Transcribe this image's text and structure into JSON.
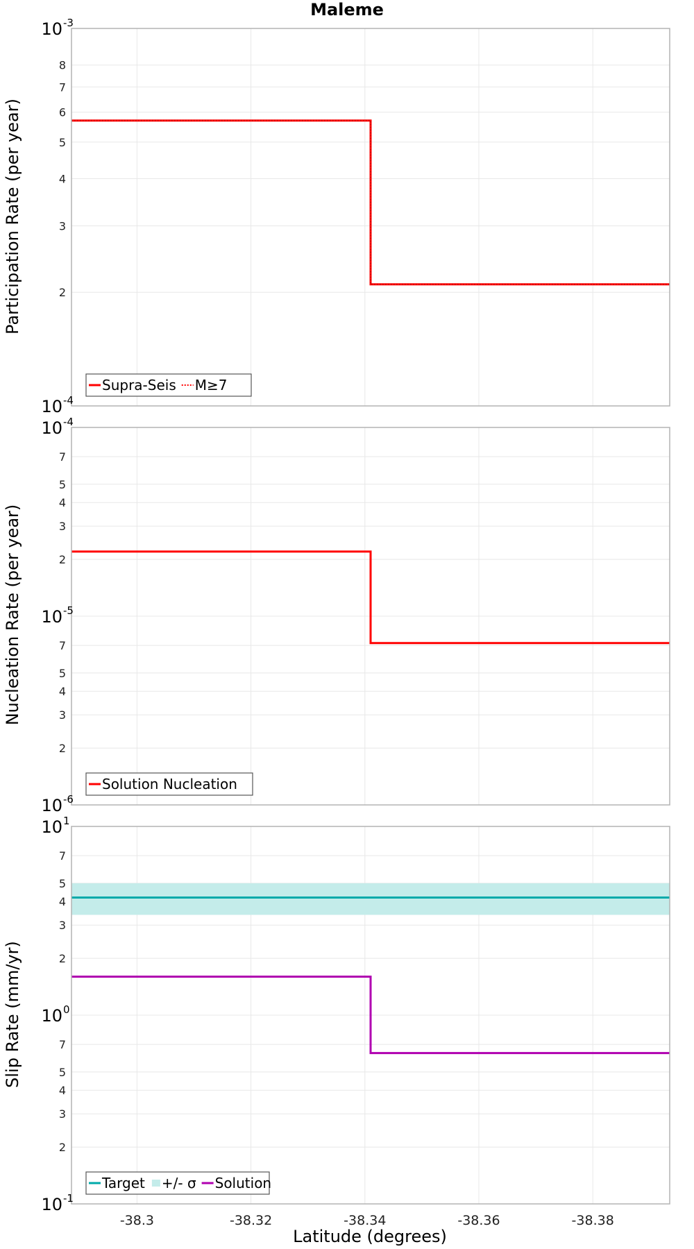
{
  "chart_data": [
    {
      "type": "line",
      "title": "Maleme",
      "xlabel": "",
      "ylabel": "Participation Rate (per year)",
      "yscale": "log",
      "ylim": [
        0.0001,
        0.001
      ],
      "xlim": [
        -38.2885,
        -38.3935
      ],
      "series": [
        {
          "name": "Supra-Seis",
          "color": "#ff0000",
          "style": "solid",
          "x": [
            -38.2885,
            -38.341,
            -38.341,
            -38.3935
          ],
          "y": [
            0.00057,
            0.00057,
            0.00021,
            0.00021
          ]
        },
        {
          "name": "M≥7",
          "color": "#ff0000",
          "style": "dotted",
          "x": [
            -38.2885,
            -38.341,
            -38.341,
            -38.3935
          ],
          "y": [
            0.00057,
            0.00057,
            0.00021,
            0.00021
          ]
        }
      ],
      "grid": true,
      "legend": "bottom-left"
    },
    {
      "type": "line",
      "title": "",
      "xlabel": "",
      "ylabel": "Nucleation Rate (per year)",
      "yscale": "log",
      "ylim": [
        1e-06,
        0.0001
      ],
      "xlim": [
        -38.2885,
        -38.3935
      ],
      "series": [
        {
          "name": "Solution Nucleation",
          "color": "#ff0000",
          "style": "solid",
          "x": [
            -38.2885,
            -38.341,
            -38.341,
            -38.3935
          ],
          "y": [
            2.2e-05,
            2.2e-05,
            7.2e-06,
            7.2e-06
          ]
        }
      ],
      "grid": true,
      "legend": "bottom-left"
    },
    {
      "type": "line",
      "title": "",
      "xlabel": "Latitude (degrees)",
      "ylabel": "Slip Rate (mm/yr)",
      "yscale": "log",
      "ylim": [
        0.1,
        10
      ],
      "xlim": [
        -38.2885,
        -38.3935
      ],
      "series": [
        {
          "name": "Target",
          "color": "#00aaaa",
          "style": "solid",
          "x": [
            -38.2885,
            -38.3935
          ],
          "y": [
            4.2,
            4.2
          ]
        },
        {
          "name": "+/- σ",
          "color": "#c4ecea",
          "style": "band",
          "x": [
            -38.2885,
            -38.3935
          ],
          "y_low": [
            3.4,
            3.4
          ],
          "y_high": [
            5.0,
            5.0
          ]
        },
        {
          "name": "Solution",
          "color": "#b000b0",
          "style": "solid",
          "x": [
            -38.2885,
            -38.341,
            -38.341,
            -38.3935
          ],
          "y": [
            1.6,
            1.6,
            0.63,
            0.63
          ]
        }
      ],
      "grid": true,
      "legend": "bottom-left"
    }
  ],
  "x_ticks": [
    "-38.3",
    "-38.32",
    "-38.34",
    "-38.36",
    "-38.38"
  ],
  "x_tick_values": [
    -38.3,
    -38.32,
    -38.34,
    -38.36,
    -38.38
  ],
  "panel_ticks": [
    {
      "decades": [
        {
          "base": "10",
          "exp": "-3",
          "value": 0.001
        },
        {
          "base": "10",
          "exp": "-4",
          "value": 0.0001
        }
      ],
      "minor": [
        {
          "label": "8",
          "value": 0.0008
        },
        {
          "label": "7",
          "value": 0.0007
        },
        {
          "label": "6",
          "value": 0.0006
        },
        {
          "label": "5",
          "value": 0.0005
        },
        {
          "label": "4",
          "value": 0.0004
        },
        {
          "label": "3",
          "value": 0.0003
        },
        {
          "label": "2",
          "value": 0.0002
        }
      ]
    },
    {
      "decades": [
        {
          "base": "10",
          "exp": "-4",
          "value": 0.0001
        },
        {
          "base": "10",
          "exp": "-5",
          "value": 1e-05
        },
        {
          "base": "10",
          "exp": "-6",
          "value": 1e-06
        }
      ],
      "minor": [
        {
          "label": "7",
          "value": 7e-05
        },
        {
          "label": "5",
          "value": 5e-05
        },
        {
          "label": "4",
          "value": 4e-05
        },
        {
          "label": "3",
          "value": 3e-05
        },
        {
          "label": "2",
          "value": 2e-05
        },
        {
          "label": "7",
          "value": 7e-06
        },
        {
          "label": "5",
          "value": 5e-06
        },
        {
          "label": "4",
          "value": 4e-06
        },
        {
          "label": "3",
          "value": 3e-06
        },
        {
          "label": "2",
          "value": 2e-06
        }
      ]
    },
    {
      "decades": [
        {
          "base": "10",
          "exp": "1",
          "value": 10
        },
        {
          "base": "10",
          "exp": "0",
          "value": 1
        },
        {
          "base": "10",
          "exp": "-1",
          "value": 0.1
        }
      ],
      "minor": [
        {
          "label": "7",
          "value": 7
        },
        {
          "label": "5",
          "value": 5
        },
        {
          "label": "4",
          "value": 4
        },
        {
          "label": "3",
          "value": 3
        },
        {
          "label": "2",
          "value": 2
        },
        {
          "label": "7",
          "value": 0.7
        },
        {
          "label": "5",
          "value": 0.5
        },
        {
          "label": "4",
          "value": 0.4
        },
        {
          "label": "3",
          "value": 0.3
        },
        {
          "label": "2",
          "value": 0.2
        }
      ]
    }
  ]
}
